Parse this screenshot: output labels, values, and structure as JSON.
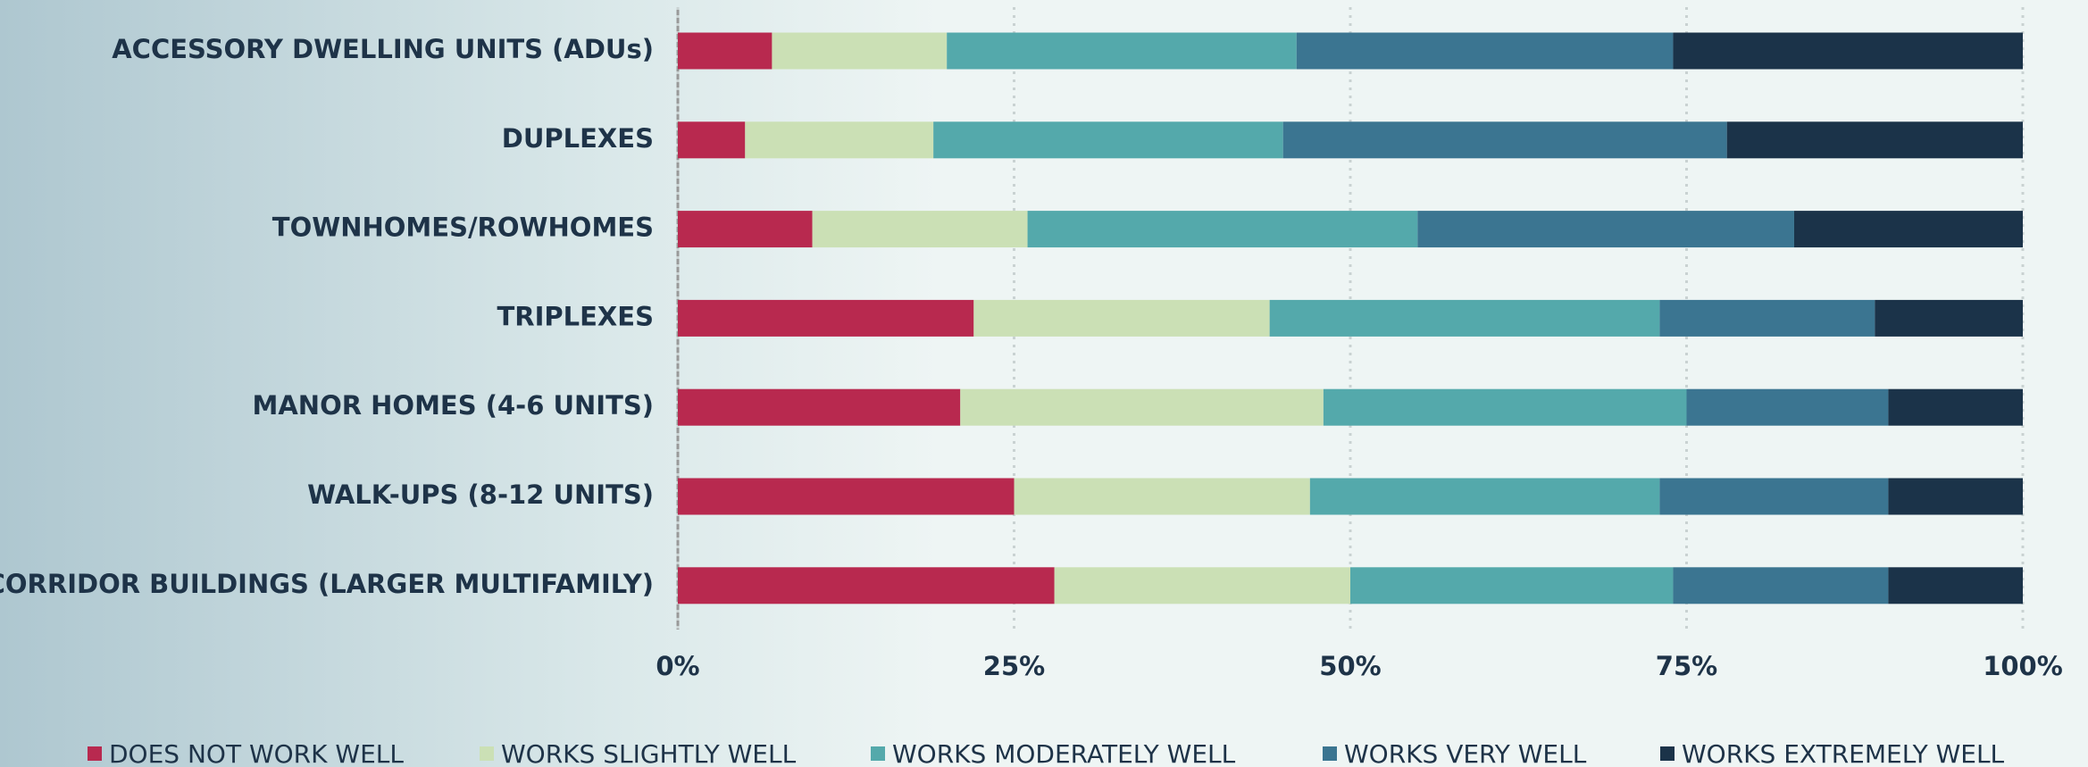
{
  "chart_data": {
    "type": "stacked-barh",
    "categories": [
      "ACCESSORY DWELLING UNITS (ADUs)",
      "DUPLEXES",
      "TOWNHOMES/ROWHOMES",
      "TRIPLEXES",
      "MANOR HOMES (4-6 UNITS)",
      "WALK-UPS (8-12 UNITS)",
      "CORRIDOR BUILDINGS (LARGER MULTIFAMILY)"
    ],
    "series": [
      {
        "name": "DOES NOT WORK WELL",
        "color": "#b8294f",
        "values": [
          7,
          5,
          10,
          22,
          21,
          25,
          28
        ]
      },
      {
        "name": "WORKS SLIGHTLY WELL",
        "color": "#cbe0b5",
        "values": [
          13,
          14,
          16,
          22,
          27,
          22,
          22
        ]
      },
      {
        "name": "WORKS MODERATELY WELL",
        "color": "#54a9ab",
        "values": [
          26,
          26,
          29,
          29,
          27,
          26,
          24
        ]
      },
      {
        "name": "WORKS VERY WELL",
        "color": "#3b7591",
        "values": [
          28,
          33,
          28,
          16,
          15,
          17,
          16
        ]
      },
      {
        "name": "WORKS EXTREMELY WELL",
        "color": "#1b3349",
        "values": [
          26,
          22,
          17,
          11,
          10,
          10,
          10
        ]
      }
    ],
    "xlim": [
      0,
      100
    ],
    "xticks": [
      {
        "value": 0,
        "label": "0%"
      },
      {
        "value": 25,
        "label": "25%"
      },
      {
        "value": 50,
        "label": "50%"
      },
      {
        "value": 75,
        "label": "75%"
      },
      {
        "value": 100,
        "label": "100%"
      }
    ],
    "grid": true,
    "legend": "bottom"
  }
}
